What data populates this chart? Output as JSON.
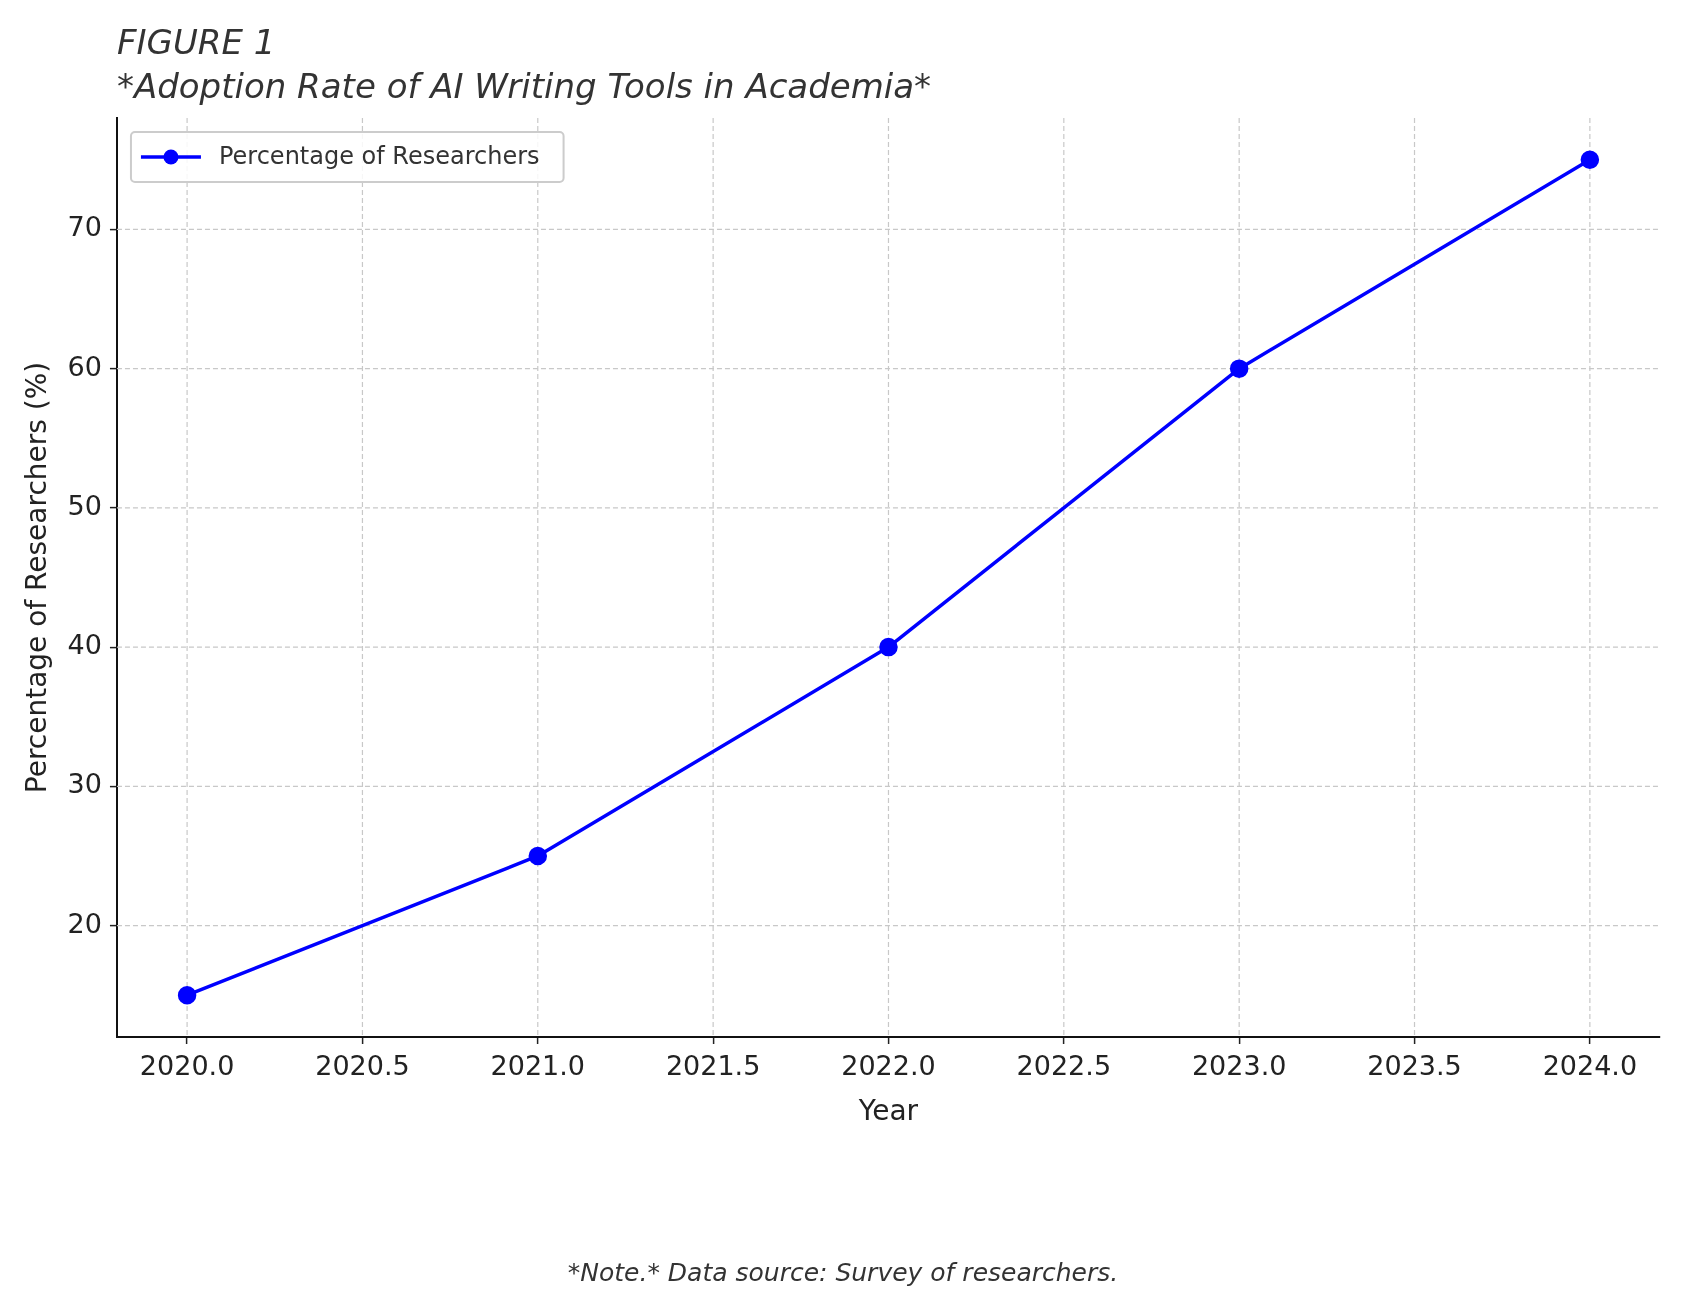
{
  "chart_data": {
    "type": "line",
    "title": "FIGURE 1",
    "subtitle": "*Adoption Rate of AI Writing Tools in Academia*",
    "xlabel": "Year",
    "ylabel": "Percentage of Researchers (%)",
    "annotations": [
      "*Note.* Data source: Survey of researchers."
    ],
    "x": [
      2020,
      2021,
      2022,
      2023,
      2024
    ],
    "series": [
      {
        "name": "Percentage of Researchers",
        "color": "#0000ff",
        "values": [
          15,
          25,
          40,
          60,
          75
        ]
      }
    ],
    "xlim": [
      2019.8,
      2024.2
    ],
    "xticks": [
      {
        "value": 2020,
        "label": "2020.0"
      },
      {
        "value": 2020.5,
        "label": "2020.5"
      },
      {
        "value": 2021,
        "label": "2021.0"
      },
      {
        "value": 2021.5,
        "label": "2021.5"
      },
      {
        "value": 2022,
        "label": "2022.0"
      },
      {
        "value": 2022.5,
        "label": "2022.5"
      },
      {
        "value": 2023,
        "label": "2023.0"
      },
      {
        "value": 2023.5,
        "label": "2023.5"
      },
      {
        "value": 2024,
        "label": "2024.0"
      }
    ],
    "ylim": [
      12,
      78
    ],
    "yticks": [
      20,
      30,
      40,
      50,
      60,
      70
    ],
    "grid": true,
    "legend": "top left",
    "marker": "circle",
    "line_style": "solid"
  }
}
